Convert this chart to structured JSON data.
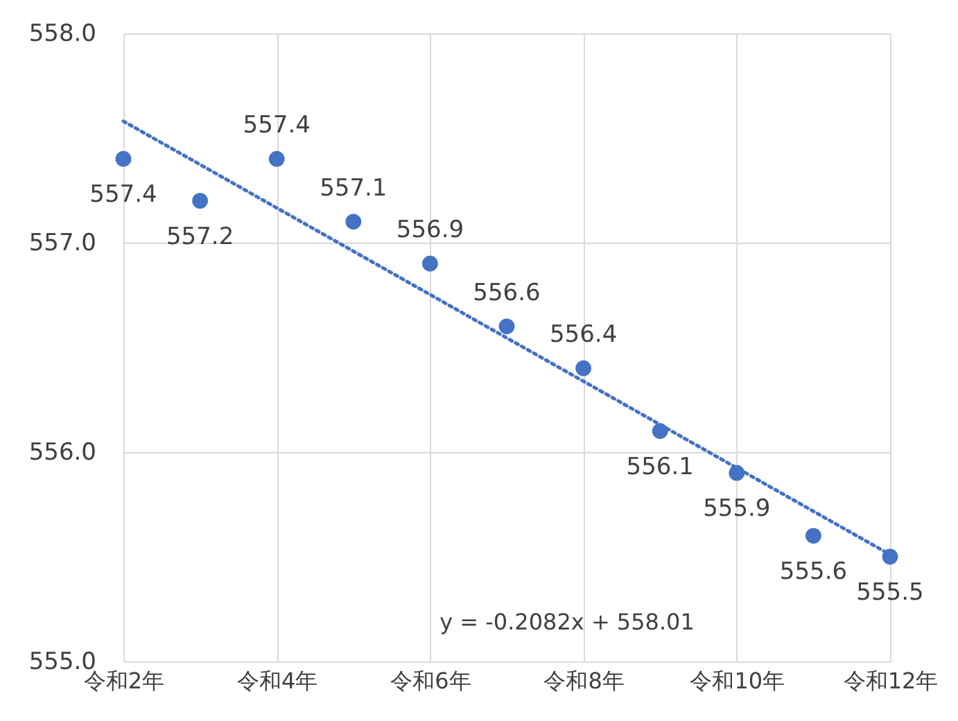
{
  "chart_data": {
    "type": "scatter",
    "categories": [
      "令和2年",
      null,
      "令和4年",
      null,
      "令和6年",
      null,
      "令和8年",
      null,
      "令和10年",
      null,
      "令和12年"
    ],
    "series": [
      {
        "color": "#4472c4",
        "values": [
          557.4,
          557.2,
          557.4,
          557.1,
          556.9,
          556.6,
          556.4,
          556.1,
          555.9,
          555.6,
          555.5
        ],
        "value_labels": [
          "557.4",
          "557.2",
          "557.4",
          "557.1",
          "556.9",
          "556.6",
          "556.4",
          "556.1",
          "555.9",
          "555.6",
          "555.5"
        ]
      },
      {
        "type": "line",
        "color": "#4472c4",
        "line_style": "dotted",
        "marker": "none",
        "values": [
          557.58,
          null,
          null,
          null,
          null,
          null,
          null,
          null,
          null,
          null,
          555.51
        ]
      }
    ],
    "marker": "circle",
    "ylim": [
      555,
      558
    ],
    "yticks": [
      {
        "value": 555,
        "label": "555.0"
      },
      {
        "value": 556,
        "label": "556.0"
      },
      {
        "value": 557,
        "label": "557.0"
      },
      {
        "value": 558,
        "label": "558.0"
      }
    ],
    "grid": true,
    "annotations": [
      "y = -0.2082x + 558.01"
    ]
  }
}
